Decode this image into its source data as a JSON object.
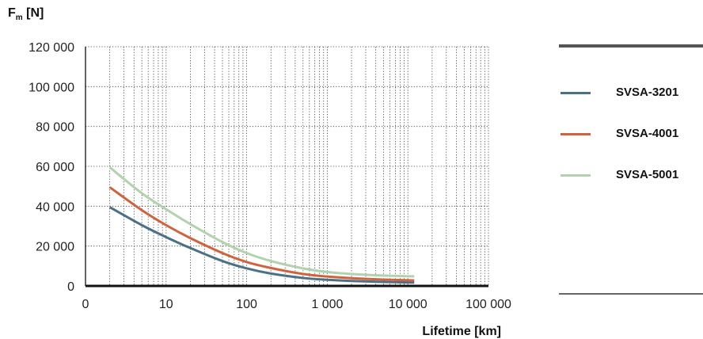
{
  "chart_data": {
    "type": "line",
    "title": "",
    "ylabel_main": "F",
    "ylabel_sub": "m",
    "ylabel_unit": "[N]",
    "xlabel": "Lifetime [km]",
    "x_scale": "log",
    "xlim": [
      1,
      100000
    ],
    "ylim": [
      0,
      120000
    ],
    "x_tick_values": [
      1,
      10,
      100,
      1000,
      10000,
      100000
    ],
    "x_tick_labels": [
      "0",
      "10",
      "100",
      "1 000",
      "10 000",
      "100 000"
    ],
    "y_tick_values": [
      0,
      20000,
      40000,
      60000,
      80000,
      100000,
      120000
    ],
    "y_tick_labels": [
      "0",
      "20 000",
      "40 000",
      "60 000",
      "80 000",
      "100 000",
      "120 000"
    ],
    "grid": "dotted, log minor",
    "legend_position": "right",
    "series": [
      {
        "name": "SVSA-3201",
        "color": "#4c7186",
        "x": [
          2,
          5,
          10,
          20,
          50,
          100,
          200,
          500,
          1000,
          2000,
          5000,
          12000
        ],
        "y": [
          39500,
          30500,
          24500,
          19000,
          12500,
          8800,
          6200,
          4000,
          3100,
          2500,
          2000,
          1700
        ]
      },
      {
        "name": "SVSA-4001",
        "color": "#d0633f",
        "x": [
          2,
          5,
          10,
          20,
          50,
          100,
          200,
          500,
          1000,
          2000,
          5000,
          12000
        ],
        "y": [
          49500,
          38000,
          30500,
          24000,
          16500,
          12000,
          9000,
          6000,
          4700,
          3900,
          3200,
          2800
        ]
      },
      {
        "name": "SVSA-5001",
        "color": "#b2d2ad",
        "x": [
          2,
          5,
          10,
          20,
          50,
          100,
          200,
          500,
          1000,
          2000,
          5000,
          12000
        ],
        "y": [
          59500,
          46500,
          38500,
          31000,
          22000,
          16500,
          12500,
          8800,
          7000,
          6000,
          5200,
          4800
        ]
      }
    ]
  }
}
